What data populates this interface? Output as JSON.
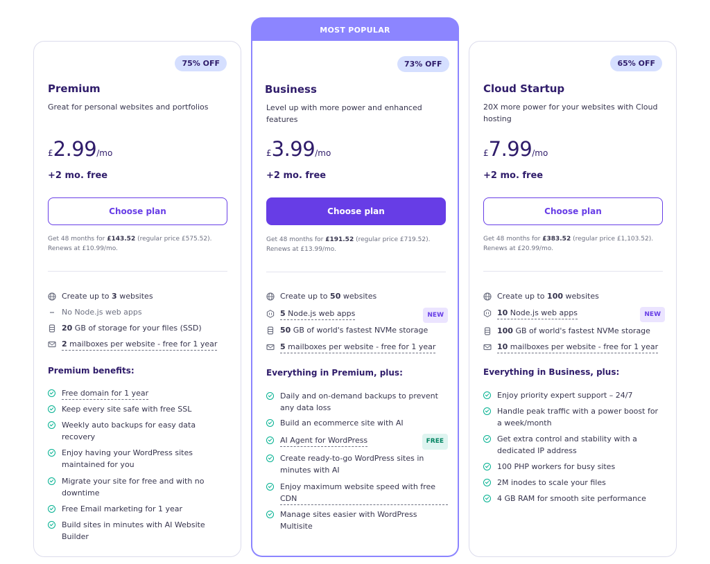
{
  "popular_label": "MOST POPULAR",
  "colors": {
    "accent": "#673de6",
    "popular": "#8c85ff",
    "check": "#00b090",
    "badge_bg": "#d5dfff"
  },
  "plans": [
    {
      "discount": "75% OFF",
      "name": "Premium",
      "description": "Great for personal websites and portfolios",
      "currency": "£",
      "price": "2.99",
      "period": "/mo",
      "free_months": "+2 mo. free",
      "button": "Choose plan",
      "terms_a": "Get 48 months for ",
      "terms_b": "£143.52",
      "terms_c": " (regular price £575.52). Renews at £10.99/mo.",
      "features": [
        {
          "icon": "globe-icon",
          "pre": "Create up to ",
          "bold": "3",
          "post": " websites"
        },
        {
          "icon": "dash-icon",
          "pre": "No Node.js web apps",
          "bold": "",
          "post": ""
        },
        {
          "icon": "storage-icon",
          "pre": "",
          "bold": "20",
          "post": " GB of storage for your files (SSD)"
        },
        {
          "icon": "mail-icon",
          "pre": "",
          "bold": "2",
          "post": " mailboxes per website - free for 1 year"
        }
      ],
      "benefits_title": "Premium benefits:",
      "benefits": [
        "Free domain for 1 year",
        "Keep every site safe with free SSL",
        "Weekly auto backups for easy data recovery",
        "Enjoy having your WordPress sites maintained for you",
        "Migrate your site for free and with no downtime",
        "Free Email marketing for 1 year",
        "Build sites in minutes with AI Website Builder"
      ]
    },
    {
      "discount": "73% OFF",
      "name": "Business",
      "description": "Level up with more power and enhanced features",
      "currency": "£",
      "price": "3.99",
      "period": "/mo",
      "free_months": "+2 mo. free",
      "button": "Choose plan",
      "terms_a": "Get 48 months for ",
      "terms_b": "£191.52",
      "terms_c": " (regular price £719.52). Renews at £13.99/mo.",
      "features": [
        {
          "icon": "globe-icon",
          "pre": "Create up to ",
          "bold": "50",
          "post": " websites"
        },
        {
          "icon": "nodejs-icon",
          "pre": "",
          "bold": "5",
          "post": " Node.js web apps",
          "badge": "NEW"
        },
        {
          "icon": "storage-icon",
          "pre": "",
          "bold": "50",
          "post": " GB of world's fastest NVMe storage"
        },
        {
          "icon": "mail-icon",
          "pre": "",
          "bold": "5",
          "post": " mailboxes per website - free for 1 year"
        }
      ],
      "benefits_title": "Everything in Premium, plus:",
      "benefits": [
        "Daily and on-demand backups to prevent any data loss",
        "Build an ecommerce site with AI",
        "AI Agent for WordPress",
        "Create ready-to-go WordPress sites in minutes with AI",
        "Enjoy maximum website speed with free CDN",
        "Manage sites easier with WordPress Multisite"
      ],
      "benefit_badge": "FREE"
    },
    {
      "discount": "65% OFF",
      "name": "Cloud Startup",
      "description": "20X more power for your websites with Cloud hosting",
      "currency": "£",
      "price": "7.99",
      "period": "/mo",
      "free_months": "+2 mo. free",
      "button": "Choose plan",
      "terms_a": "Get 48 months for ",
      "terms_b": "£383.52",
      "terms_c": " (regular price £1,103.52). Renews at £20.99/mo.",
      "features": [
        {
          "icon": "globe-icon",
          "pre": "Create up to ",
          "bold": "100",
          "post": " websites"
        },
        {
          "icon": "nodejs-icon",
          "pre": "",
          "bold": "10",
          "post": " Node.js web apps",
          "badge": "NEW"
        },
        {
          "icon": "storage-icon",
          "pre": "",
          "bold": "100",
          "post": " GB of world's fastest NVMe storage"
        },
        {
          "icon": "mail-icon",
          "pre": "",
          "bold": "10",
          "post": " mailboxes per website - free for 1 year"
        }
      ],
      "benefits_title": "Everything in Business, plus:",
      "benefits": [
        "Enjoy priority expert support – 24/7",
        "Handle peak traffic with a power boost for a week/month",
        "Get extra control and stability with a dedicated IP address",
        "100 PHP workers for busy sites",
        "2M inodes to scale your files",
        "4 GB RAM for smooth site performance"
      ]
    }
  ]
}
